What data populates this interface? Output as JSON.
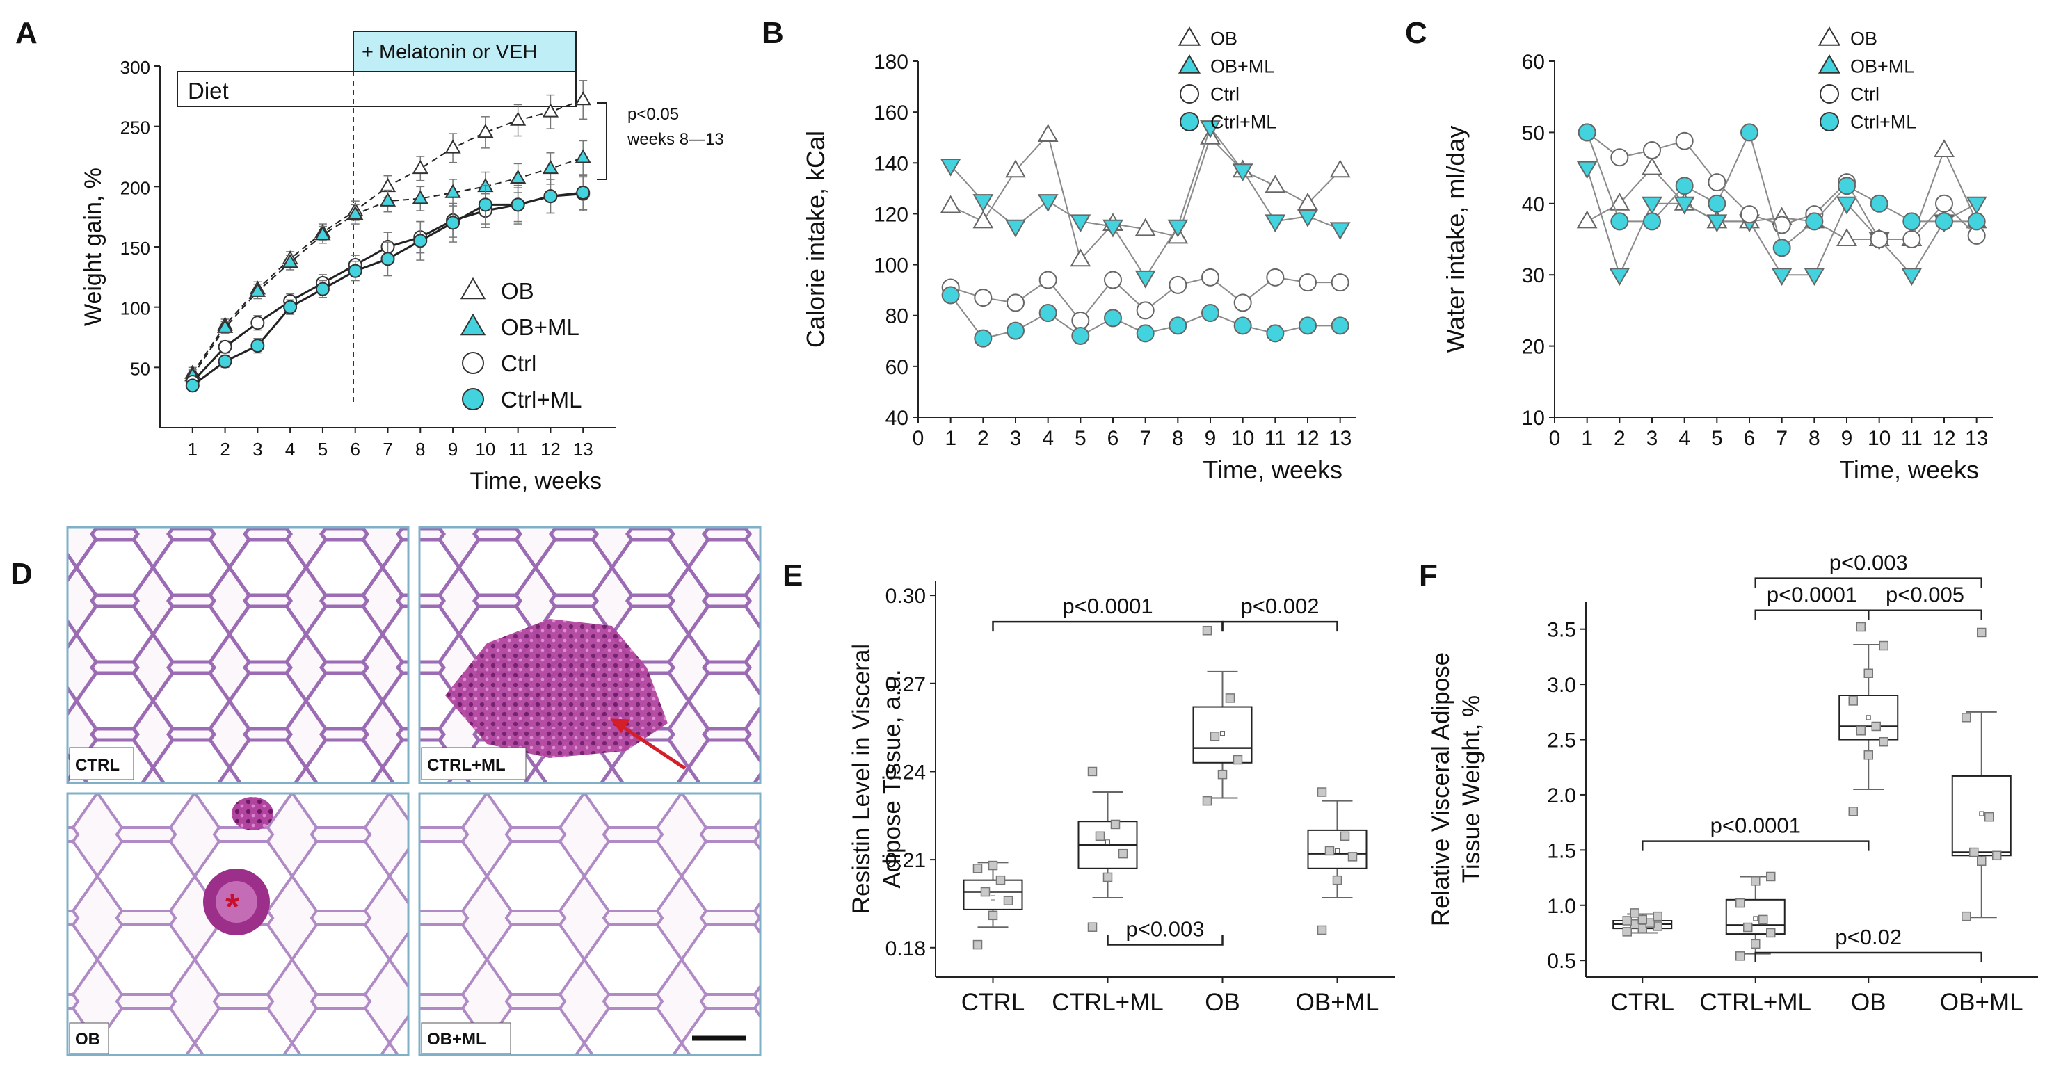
{
  "colors": {
    "cyan": "#43d3de",
    "light_cyan": "#a8e6ee",
    "gray": "#8a8a8a",
    "dark": "#222222",
    "box_fill": "#cfe9f5",
    "red": "#c8102e",
    "tissue_bg": "#f6eef6",
    "tissue_line": "#8a5aa8",
    "tissue_dark": "#8f2a7c"
  },
  "panel_letters": {
    "a": "A",
    "b": "B",
    "c": "C",
    "d": "D",
    "e": "E",
    "f": "F"
  },
  "chart_data": [
    {
      "id": "A",
      "type": "line",
      "xlabel": "Time, weeks",
      "ylabel": "Weight gain, %",
      "xlim": [
        0,
        14
      ],
      "ylim": [
        0,
        300
      ],
      "xticks": [
        1,
        2,
        3,
        4,
        5,
        6,
        7,
        8,
        9,
        10,
        11,
        12,
        13
      ],
      "yticks": [
        50,
        100,
        150,
        200,
        250,
        300
      ],
      "x": [
        1,
        2,
        3,
        4,
        5,
        6,
        7,
        8,
        9,
        10,
        11,
        12,
        13
      ],
      "series": [
        {
          "name": "OB",
          "marker": "triangle",
          "fill": "white",
          "line": "dashed",
          "values": [
            45,
            85,
            115,
            140,
            162,
            180,
            200,
            215,
            232,
            245,
            255,
            262,
            272
          ],
          "err": [
            5,
            5,
            6,
            6,
            7,
            8,
            9,
            10,
            12,
            13,
            13,
            14,
            16
          ]
        },
        {
          "name": "OB+ML",
          "marker": "triangle",
          "fill": "cyan",
          "line": "dashed",
          "values": [
            43,
            83,
            113,
            137,
            160,
            177,
            188,
            190,
            195,
            200,
            207,
            215,
            224
          ],
          "err": [
            5,
            5,
            6,
            6,
            7,
            8,
            9,
            10,
            11,
            12,
            12,
            13,
            14
          ]
        },
        {
          "name": "Ctrl",
          "marker": "circle",
          "fill": "white",
          "line": "solid",
          "values": [
            38,
            67,
            87,
            105,
            120,
            135,
            150,
            158,
            172,
            180,
            185,
            192,
            194
          ],
          "err": [
            4,
            5,
            6,
            6,
            7,
            8,
            12,
            13,
            14,
            14,
            14,
            14,
            14
          ]
        },
        {
          "name": "Ctrl+ML",
          "marker": "circle",
          "fill": "cyan",
          "line": "solid",
          "values": [
            35,
            55,
            68,
            100,
            115,
            130,
            140,
            155,
            170,
            185,
            185,
            192,
            195
          ],
          "err": [
            4,
            5,
            6,
            6,
            7,
            8,
            14,
            16,
            16,
            16,
            16,
            14,
            14
          ]
        }
      ],
      "annotations": {
        "diet": "Diet",
        "treatment": "+ Melatonin or VEH",
        "signif_1": "p<0.05",
        "signif_2": "weeks 8—13"
      }
    },
    {
      "id": "B",
      "type": "line",
      "xlabel": "Time, weeks",
      "ylabel": "Calorie intake, kCal",
      "xlim": [
        0,
        13.5
      ],
      "ylim": [
        40,
        180
      ],
      "xticks": [
        0,
        1,
        2,
        3,
        4,
        5,
        6,
        7,
        8,
        9,
        10,
        11,
        12,
        13
      ],
      "yticks": [
        40,
        60,
        80,
        100,
        120,
        140,
        160,
        180
      ],
      "x": [
        1,
        2,
        3,
        4,
        5,
        6,
        7,
        8,
        9,
        10,
        11,
        12,
        13
      ],
      "series": [
        {
          "name": "OB",
          "marker": "triangle",
          "fill": "white",
          "values": [
            123,
            117,
            137,
            151,
            102,
            116,
            114,
            111,
            150,
            137,
            131,
            124,
            137
          ]
        },
        {
          "name": "OB+ML",
          "marker": "triangle-down",
          "fill": "cyan",
          "values": [
            139,
            125,
            115,
            125,
            117,
            115,
            95,
            115,
            154,
            137,
            117,
            119,
            114
          ]
        },
        {
          "name": "Ctrl",
          "marker": "circle",
          "fill": "white",
          "values": [
            91,
            87,
            85,
            94,
            78,
            94,
            82,
            92,
            95,
            85,
            95,
            93,
            93
          ]
        },
        {
          "name": "Ctrl+ML",
          "marker": "circle",
          "fill": "cyan",
          "values": [
            88,
            71,
            74,
            81,
            72,
            79,
            73,
            76,
            81,
            76,
            73,
            76,
            76
          ]
        }
      ]
    },
    {
      "id": "C",
      "type": "line",
      "xlabel": "Time, weeks",
      "ylabel": "Water intake, ml/day",
      "xlim": [
        0,
        13.5
      ],
      "ylim": [
        10,
        60
      ],
      "xticks": [
        0,
        1,
        2,
        3,
        4,
        5,
        6,
        7,
        8,
        9,
        10,
        11,
        12,
        13
      ],
      "yticks": [
        10,
        20,
        30,
        40,
        50,
        60
      ],
      "x": [
        1,
        2,
        3,
        4,
        5,
        6,
        7,
        8,
        9,
        10,
        11,
        12,
        13
      ],
      "series": [
        {
          "name": "OB",
          "marker": "triangle",
          "fill": "white",
          "values": [
            37.5,
            40,
            45,
            40,
            37.5,
            37.5,
            38,
            37.5,
            35,
            35,
            35,
            47.5,
            37.5
          ]
        },
        {
          "name": "OB+ML",
          "marker": "triangle-down",
          "fill": "cyan",
          "values": [
            45,
            30,
            40,
            40,
            37.5,
            37.5,
            30,
            30,
            40,
            35,
            30,
            37.5,
            40
          ]
        },
        {
          "name": "Ctrl",
          "marker": "circle",
          "fill": "white",
          "values": [
            50,
            46.5,
            47.5,
            48.8,
            43,
            38.5,
            37,
            38.5,
            43,
            35,
            35,
            40,
            35.5
          ]
        },
        {
          "name": "Ctrl+ML",
          "marker": "circle",
          "fill": "cyan",
          "values": [
            50,
            37.5,
            37.5,
            42.5,
            40,
            50,
            33.8,
            37.5,
            42.5,
            40,
            37.5,
            37.5,
            37.5
          ]
        }
      ]
    },
    {
      "id": "E",
      "type": "box",
      "ylabel_1": "Resistin Level in Visceral",
      "ylabel_2": "Adipose Tissue, a.u.",
      "ylim": [
        0.17,
        0.305
      ],
      "yticks": [
        {
          "v": 0.18,
          "label": "0.18"
        },
        {
          "v": 0.21,
          "label": "0.21"
        },
        {
          "v": 0.24,
          "label": "0.24"
        },
        {
          "v": 0.27,
          "label": "0.27"
        },
        {
          "v": 0.3,
          "label": "0.30"
        }
      ],
      "categories": [
        "CTRL",
        "CTRL+ML",
        "OB",
        "OB+ML"
      ],
      "boxes": [
        {
          "q1": 0.193,
          "median": 0.199,
          "q3": 0.203,
          "whisker_low": 0.187,
          "whisker_high": 0.209,
          "mean": 0.197,
          "points": [
            0.181,
            0.191,
            0.196,
            0.199,
            0.203,
            0.207,
            0.208
          ]
        },
        {
          "q1": 0.207,
          "median": 0.215,
          "q3": 0.223,
          "whisker_low": 0.197,
          "whisker_high": 0.233,
          "mean": 0.216,
          "points": [
            0.187,
            0.204,
            0.212,
            0.218,
            0.222,
            0.24
          ]
        },
        {
          "q1": 0.243,
          "median": 0.248,
          "q3": 0.262,
          "whisker_low": 0.231,
          "whisker_high": 0.274,
          "mean": 0.253,
          "points": [
            0.23,
            0.239,
            0.244,
            0.252,
            0.265,
            0.288
          ]
        },
        {
          "q1": 0.207,
          "median": 0.212,
          "q3": 0.22,
          "whisker_low": 0.197,
          "whisker_high": 0.23,
          "mean": 0.213,
          "points": [
            0.186,
            0.203,
            0.211,
            0.213,
            0.218,
            0.233
          ]
        }
      ],
      "comparisons": [
        {
          "from": 0,
          "to": 2,
          "y": 0.291,
          "label": "p<0.0001",
          "side": "above"
        },
        {
          "from": 2,
          "to": 3,
          "y": 0.291,
          "label": "p<0.002",
          "side": "above"
        },
        {
          "from": 1,
          "to": 2,
          "y": 0.181,
          "label": "p<0.003",
          "side": "below"
        }
      ]
    },
    {
      "id": "F",
      "type": "box",
      "ylabel_1": "Relative Visceral Adipose",
      "ylabel_2": "Tissue Weight, %",
      "ylim": [
        0.35,
        3.75
      ],
      "yticks": [
        {
          "v": 0.5,
          "label": "0.5"
        },
        {
          "v": 1.0,
          "label": "1.0"
        },
        {
          "v": 1.5,
          "label": "1.5"
        },
        {
          "v": 2.0,
          "label": "2.0"
        },
        {
          "v": 2.5,
          "label": "2.5"
        },
        {
          "v": 3.0,
          "label": "3.0"
        },
        {
          "v": 3.5,
          "label": "3.5"
        }
      ],
      "categories": [
        "CTRL",
        "CTRL+ML",
        "OB",
        "OB+ML"
      ],
      "boxes": [
        {
          "q1": 0.79,
          "median": 0.83,
          "q3": 0.86,
          "whisker_low": 0.75,
          "whisker_high": 0.92,
          "mean": 0.83,
          "points": [
            0.76,
            0.79,
            0.81,
            0.83,
            0.84,
            0.86,
            0.87,
            0.9,
            0.93
          ]
        },
        {
          "q1": 0.74,
          "median": 0.82,
          "q3": 1.05,
          "whisker_low": 0.56,
          "whisker_high": 1.26,
          "mean": 0.88,
          "points": [
            0.54,
            0.65,
            0.75,
            0.8,
            0.87,
            1.02,
            1.22,
            1.26
          ]
        },
        {
          "q1": 2.5,
          "median": 2.62,
          "q3": 2.9,
          "whisker_low": 2.05,
          "whisker_high": 3.36,
          "mean": 2.7,
          "points": [
            1.85,
            2.36,
            2.48,
            2.58,
            2.62,
            2.85,
            3.1,
            3.35,
            3.52
          ]
        },
        {
          "q1": 1.45,
          "median": 1.48,
          "q3": 2.17,
          "whisker_low": 0.89,
          "whisker_high": 2.75,
          "mean": 1.83,
          "points": [
            0.9,
            1.4,
            1.45,
            1.48,
            1.8,
            2.7,
            3.47
          ]
        }
      ],
      "comparisons": [
        {
          "from": 1,
          "to": 3,
          "y": 3.96,
          "label": "p<0.003",
          "side": "above"
        },
        {
          "from": 1,
          "to": 2,
          "y": 3.67,
          "label": "p<0.0001",
          "side": "above"
        },
        {
          "from": 2,
          "to": 3,
          "y": 3.67,
          "label": "p<0.005",
          "side": "above"
        },
        {
          "from": 0,
          "to": 2,
          "y": 1.58,
          "label": "p<0.0001",
          "side": "above"
        },
        {
          "from": 1,
          "to": 3,
          "y": 0.57,
          "label": "p<0.02",
          "side": "above"
        }
      ]
    }
  ],
  "micrographs": [
    {
      "label": "CTRL"
    },
    {
      "label": "CTRL+ML"
    },
    {
      "label": "OB"
    },
    {
      "label": "OB+ML"
    }
  ],
  "asterisk": "*"
}
